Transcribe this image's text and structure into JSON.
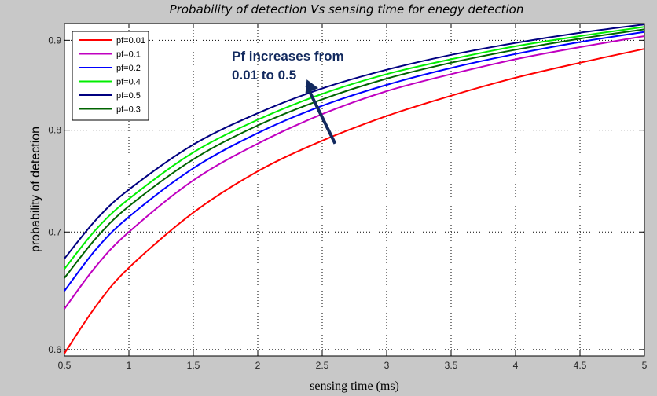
{
  "chart_data": {
    "type": "line",
    "title": "Probability of detection Vs sensing time for enegy detection",
    "xlabel": "sensing time (ms)",
    "ylabel": "probability of detection",
    "xlim": [
      0.5,
      5
    ],
    "ylim": [
      0.595,
      0.92
    ],
    "yscale": "log",
    "grid": true,
    "legend_position": "top-left",
    "xticks": [
      0.5,
      1,
      1.5,
      2,
      2.5,
      3,
      3.5,
      4,
      4.5,
      5
    ],
    "xtick_labels": [
      "0.5",
      "1",
      "1.5",
      "2",
      "2.5",
      "3",
      "3.5",
      "4",
      "4.5",
      "5"
    ],
    "yticks": [
      0.6,
      0.7,
      0.8,
      0.9
    ],
    "ytick_labels": [
      "0.6",
      "0.7",
      "0.8",
      "0.9"
    ],
    "x": [
      0.5,
      0.75,
      1,
      1.5,
      2,
      2.5,
      3,
      3.5,
      4,
      4.5,
      5
    ],
    "series": [
      {
        "name": "pf=0.01",
        "color": "#ff0000",
        "values": [
          0.597,
          0.636,
          0.668,
          0.718,
          0.758,
          0.789,
          0.815,
          0.837,
          0.857,
          0.874,
          0.89
        ]
      },
      {
        "name": "pf=0.1",
        "color": "#c000c0",
        "values": [
          0.633,
          0.67,
          0.7,
          0.749,
          0.786,
          0.817,
          0.842,
          0.861,
          0.878,
          0.892,
          0.905
        ]
      },
      {
        "name": "pf=0.2",
        "color": "#0000ff",
        "values": [
          0.648,
          0.685,
          0.714,
          0.761,
          0.797,
          0.826,
          0.849,
          0.868,
          0.884,
          0.898,
          0.91
        ]
      },
      {
        "name": "pf=0.4",
        "color": "#00ee00",
        "values": [
          0.667,
          0.703,
          0.731,
          0.777,
          0.811,
          0.839,
          0.861,
          0.878,
          0.893,
          0.905,
          0.916
        ]
      },
      {
        "name": "pf=0.5",
        "color": "#000080",
        "values": [
          0.676,
          0.712,
          0.74,
          0.785,
          0.818,
          0.845,
          0.866,
          0.883,
          0.897,
          0.909,
          0.919
        ]
      },
      {
        "name": "pf=0.3",
        "color": "#006400",
        "values": [
          0.659,
          0.695,
          0.724,
          0.77,
          0.805,
          0.833,
          0.856,
          0.874,
          0.889,
          0.902,
          0.913
        ]
      }
    ],
    "annotation": {
      "lines": [
        "Pf increases from",
        "0.01 to 0.5"
      ],
      "arrow_from": [
        2.6,
        0.786
      ],
      "arrow_to": [
        2.38,
        0.855
      ],
      "color": "#12295e"
    }
  }
}
